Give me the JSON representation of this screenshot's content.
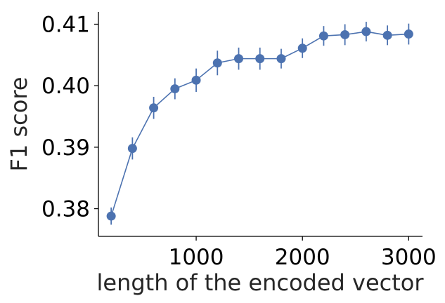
{
  "chart_data": {
    "type": "line",
    "title": "",
    "xlabel": "length of the encoded vector",
    "ylabel": "F1 score",
    "xlim": [
      80,
      3130
    ],
    "ylim": [
      0.3755,
      0.412
    ],
    "xticks": [
      1000,
      2000,
      3000
    ],
    "xtick_labels": [
      "1000",
      "2000",
      "3000"
    ],
    "yticks": [
      0.38,
      0.39,
      0.4,
      0.41
    ],
    "ytick_labels": [
      "0.38",
      "0.39",
      "0.40",
      "0.41"
    ],
    "grid": false,
    "color": "#4c72b0",
    "series": [
      {
        "x": [
          200,
          400,
          600,
          800,
          1000,
          1200,
          1400,
          1600,
          1800,
          2000,
          2200,
          2400,
          2600,
          2800,
          3000
        ],
        "y": [
          0.3788,
          0.3898,
          0.3964,
          0.3995,
          0.4009,
          0.4037,
          0.4044,
          0.4044,
          0.4044,
          0.4061,
          0.4081,
          0.4083,
          0.4088,
          0.4082,
          0.4084
        ],
        "err": [
          0.0014,
          0.0018,
          0.0018,
          0.0017,
          0.0019,
          0.002,
          0.0018,
          0.0018,
          0.0016,
          0.0016,
          0.0016,
          0.0017,
          0.0016,
          0.0016,
          0.0017
        ]
      }
    ]
  }
}
